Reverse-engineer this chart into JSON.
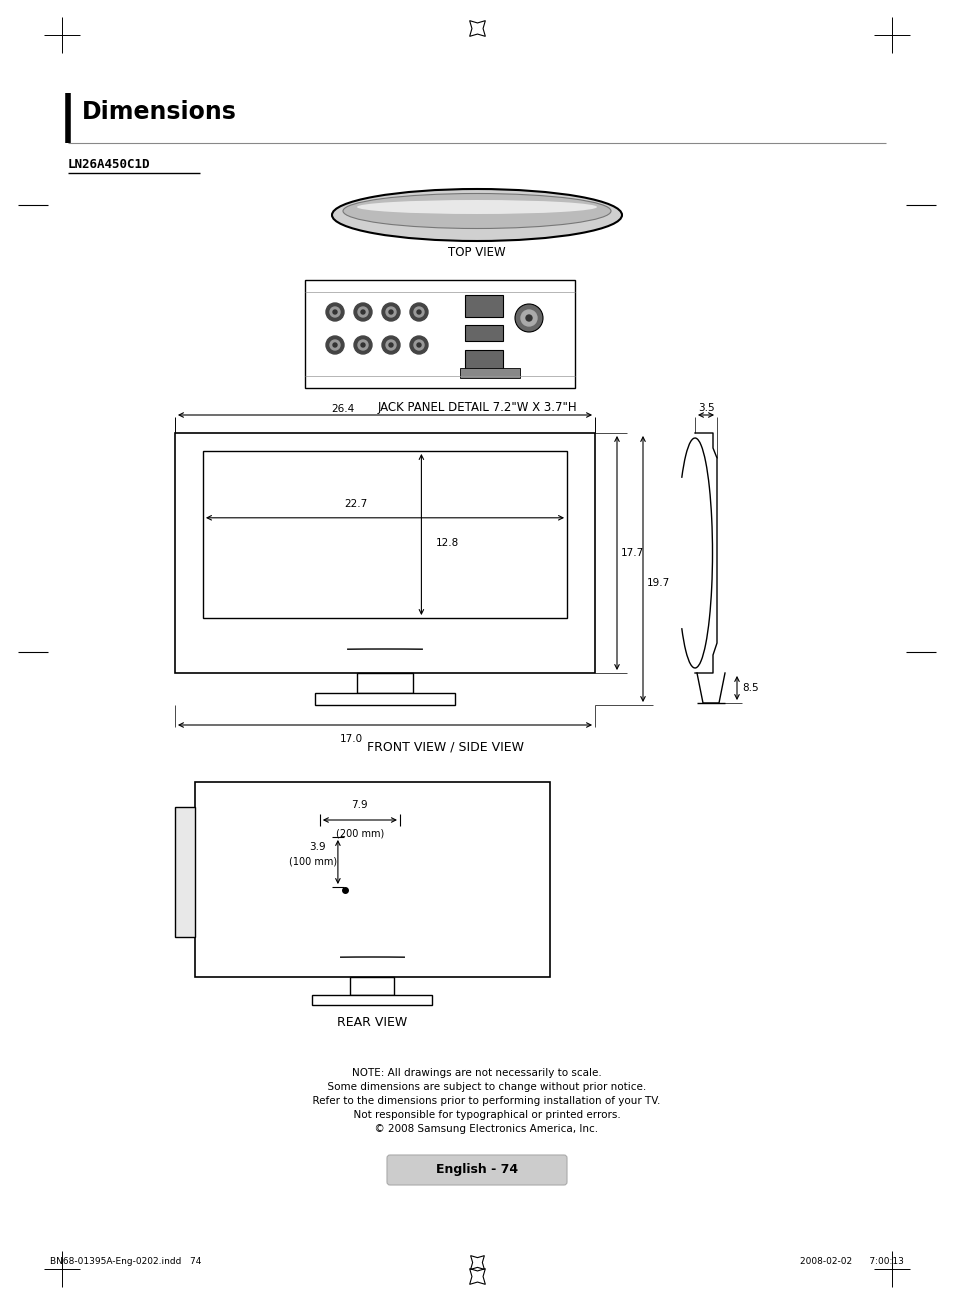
{
  "title": "Dimensions",
  "subtitle": "LN26A450C1D",
  "bg_color": "#ffffff",
  "text_color": "#000000",
  "page_number": "English - 74",
  "footer_left": "BN68-01395A-Eng-0202.indd   74",
  "footer_right": "2008-02-02      7:00:13",
  "jack_panel_label": "JACK PANEL DETAIL 7.2\"W X 3.7\"H",
  "front_side_label": "FRONT VIEW / SIDE VIEW",
  "rear_label": "REAR VIEW",
  "top_view_label": "TOP VIEW",
  "note_line1": "NOTE: All drawings are not necessarily to scale.",
  "note_line2": "      Some dimensions are subject to change without prior notice.",
  "note_line3": "      Refer to the dimensions prior to performing installation of your TV.",
  "note_line4": "      Not responsible for typographical or printed errors.",
  "note_line5": "      © 2008 Samsung Electronics America, Inc.",
  "dim_264": "26.4",
  "dim_227": "22.7",
  "dim_128": "12.8",
  "dim_177": "17.7",
  "dim_197": "19.7",
  "dim_170": "17.0",
  "dim_35": "3.5",
  "dim_85": "8.5",
  "dim_79": "7.9",
  "dim_200mm": "(200 mm)",
  "dim_39": "3.9",
  "dim_100mm": "(100 mm)"
}
